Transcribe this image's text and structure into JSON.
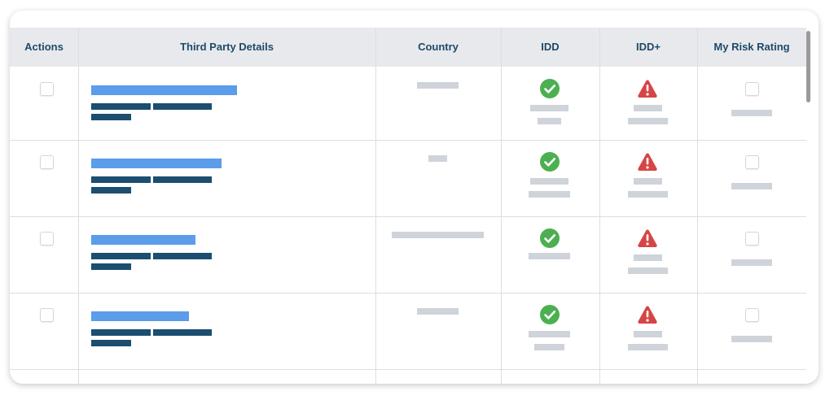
{
  "table": {
    "columns": [
      "Actions",
      "Third Party Details",
      "Country",
      "IDD",
      "IDD+",
      "My Risk Rating"
    ],
    "rows": [
      {
        "selected": false,
        "idd_status": "check-circle-icon",
        "idd_plus_status": "warning-triangle-icon",
        "risk_rating_checked": false
      },
      {
        "selected": false,
        "idd_status": "check-circle-icon",
        "idd_plus_status": "warning-triangle-icon",
        "risk_rating_checked": false
      },
      {
        "selected": false,
        "idd_status": "check-circle-icon",
        "idd_plus_status": "warning-triangle-icon",
        "risk_rating_checked": false
      },
      {
        "selected": false,
        "idd_status": "check-circle-icon",
        "idd_plus_status": "warning-triangle-icon",
        "risk_rating_checked": false
      }
    ]
  },
  "colors": {
    "header_text": "#1d4a6b",
    "link_placeholder": "#5b9de9",
    "detail_placeholder": "#1b4e70",
    "muted_placeholder": "#cfd3da",
    "success": "#4caf50",
    "warning": "#d64545"
  }
}
